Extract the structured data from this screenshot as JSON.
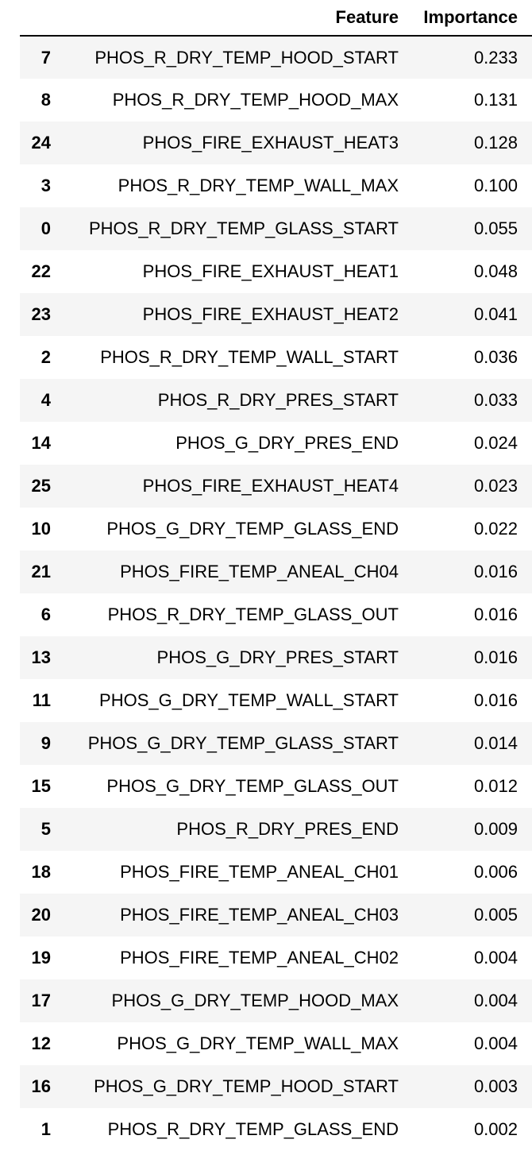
{
  "table": {
    "columns": {
      "index": "",
      "feature": "Feature",
      "importance": "Importance"
    },
    "rows": [
      {
        "index": "7",
        "feature": "PHOS_R_DRY_TEMP_HOOD_START",
        "importance": "0.233"
      },
      {
        "index": "8",
        "feature": "PHOS_R_DRY_TEMP_HOOD_MAX",
        "importance": "0.131"
      },
      {
        "index": "24",
        "feature": "PHOS_FIRE_EXHAUST_HEAT3",
        "importance": "0.128"
      },
      {
        "index": "3",
        "feature": "PHOS_R_DRY_TEMP_WALL_MAX",
        "importance": "0.100"
      },
      {
        "index": "0",
        "feature": "PHOS_R_DRY_TEMP_GLASS_START",
        "importance": "0.055"
      },
      {
        "index": "22",
        "feature": "PHOS_FIRE_EXHAUST_HEAT1",
        "importance": "0.048"
      },
      {
        "index": "23",
        "feature": "PHOS_FIRE_EXHAUST_HEAT2",
        "importance": "0.041"
      },
      {
        "index": "2",
        "feature": "PHOS_R_DRY_TEMP_WALL_START",
        "importance": "0.036"
      },
      {
        "index": "4",
        "feature": "PHOS_R_DRY_PRES_START",
        "importance": "0.033"
      },
      {
        "index": "14",
        "feature": "PHOS_G_DRY_PRES_END",
        "importance": "0.024"
      },
      {
        "index": "25",
        "feature": "PHOS_FIRE_EXHAUST_HEAT4",
        "importance": "0.023"
      },
      {
        "index": "10",
        "feature": "PHOS_G_DRY_TEMP_GLASS_END",
        "importance": "0.022"
      },
      {
        "index": "21",
        "feature": "PHOS_FIRE_TEMP_ANEAL_CH04",
        "importance": "0.016"
      },
      {
        "index": "6",
        "feature": "PHOS_R_DRY_TEMP_GLASS_OUT",
        "importance": "0.016"
      },
      {
        "index": "13",
        "feature": "PHOS_G_DRY_PRES_START",
        "importance": "0.016"
      },
      {
        "index": "11",
        "feature": "PHOS_G_DRY_TEMP_WALL_START",
        "importance": "0.016"
      },
      {
        "index": "9",
        "feature": "PHOS_G_DRY_TEMP_GLASS_START",
        "importance": "0.014"
      },
      {
        "index": "15",
        "feature": "PHOS_G_DRY_TEMP_GLASS_OUT",
        "importance": "0.012"
      },
      {
        "index": "5",
        "feature": "PHOS_R_DRY_PRES_END",
        "importance": "0.009"
      },
      {
        "index": "18",
        "feature": "PHOS_FIRE_TEMP_ANEAL_CH01",
        "importance": "0.006"
      },
      {
        "index": "20",
        "feature": "PHOS_FIRE_TEMP_ANEAL_CH03",
        "importance": "0.005"
      },
      {
        "index": "19",
        "feature": "PHOS_FIRE_TEMP_ANEAL_CH02",
        "importance": "0.004"
      },
      {
        "index": "17",
        "feature": "PHOS_G_DRY_TEMP_HOOD_MAX",
        "importance": "0.004"
      },
      {
        "index": "12",
        "feature": "PHOS_G_DRY_TEMP_WALL_MAX",
        "importance": "0.004"
      },
      {
        "index": "16",
        "feature": "PHOS_G_DRY_TEMP_HOOD_START",
        "importance": "0.003"
      },
      {
        "index": "1",
        "feature": "PHOS_R_DRY_TEMP_GLASS_END",
        "importance": "0.002"
      }
    ]
  },
  "colors": {
    "stripe_row": "#f5f5f5",
    "plain_row": "#ffffff",
    "header_rule": "#000000",
    "text": "#000000"
  }
}
